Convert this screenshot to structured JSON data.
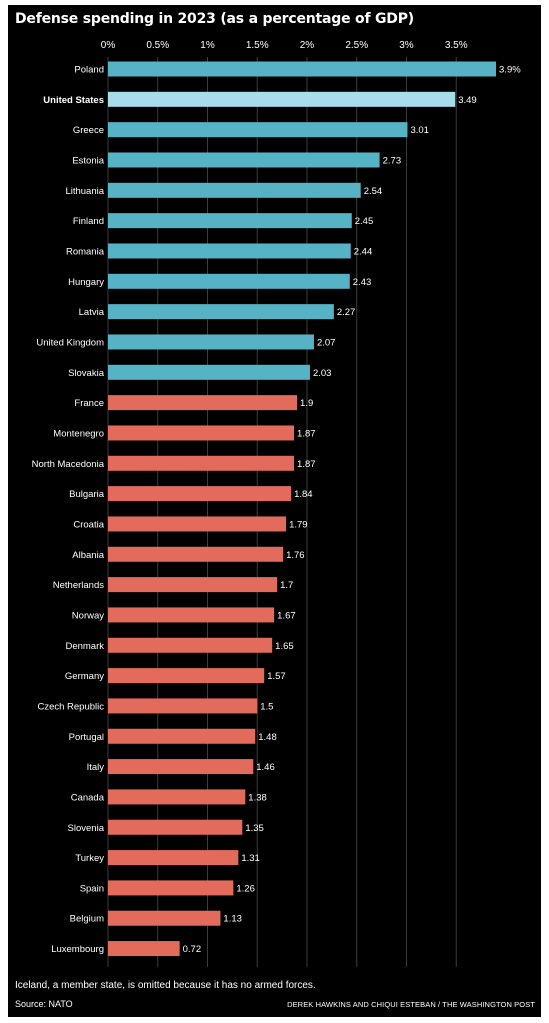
{
  "chart_data": {
    "type": "bar",
    "orientation": "horizontal",
    "title": "Defense spending in 2023 (as a percentage of GDP)",
    "categories": [
      "Poland",
      "United States",
      "Greece",
      "Estonia",
      "Lithuania",
      "Finland",
      "Romania",
      "Hungary",
      "Latvia",
      "United Kingdom",
      "Slovakia",
      "France",
      "Montenegro",
      "North Macedonia",
      "Bulgaria",
      "Croatia",
      "Albania",
      "Netherlands",
      "Norway",
      "Denmark",
      "Germany",
      "Czech Republic",
      "Portugal",
      "Italy",
      "Canada",
      "Slovenia",
      "Turkey",
      "Spain",
      "Belgium",
      "Luxembourg"
    ],
    "values": [
      3.9,
      3.49,
      3.01,
      2.73,
      2.54,
      2.45,
      2.44,
      2.43,
      2.27,
      2.07,
      2.03,
      1.9,
      1.87,
      1.87,
      1.84,
      1.79,
      1.76,
      1.7,
      1.67,
      1.65,
      1.57,
      1.5,
      1.48,
      1.46,
      1.38,
      1.35,
      1.31,
      1.26,
      1.13,
      0.72
    ],
    "value_labels": [
      "3.9%",
      "3.49",
      "3.01",
      "2.73",
      "2.54",
      "2.45",
      "2.44",
      "2.43",
      "2.27",
      "2.07",
      "2.03",
      "1.9",
      "1.87",
      "1.87",
      "1.84",
      "1.79",
      "1.76",
      "1.7",
      "1.67",
      "1.65",
      "1.57",
      "1.5",
      "1.48",
      "1.46",
      "1.38",
      "1.35",
      "1.31",
      "1.26",
      "1.13",
      "0.72"
    ],
    "highlight": "United States",
    "xlim": [
      0,
      3.95
    ],
    "x_ticks": [
      0,
      0.5,
      1,
      1.5,
      2,
      2.5,
      3,
      3.5
    ],
    "x_tick_labels": [
      "0%",
      "0.5%",
      "1%",
      "1.5%",
      "2%",
      "2.5%",
      "3%",
      "3.5%"
    ],
    "xlabel": "",
    "ylabel": "",
    "grid": "vertical",
    "legend": "none",
    "colors": {
      "above_target": "#56b3c6",
      "highlight": "#a8dcea",
      "below_target": "#e26b5c",
      "grid": "#3c3c3c",
      "background": "#000000"
    },
    "threshold": 2
  },
  "footer": {
    "note": "Iceland, a member state, is omitted because it has no armed forces.",
    "source": "Source: NATO",
    "credit": "DEREK HAWKINS AND CHIQUI ESTEBAN / THE WASHINGTON POST"
  }
}
